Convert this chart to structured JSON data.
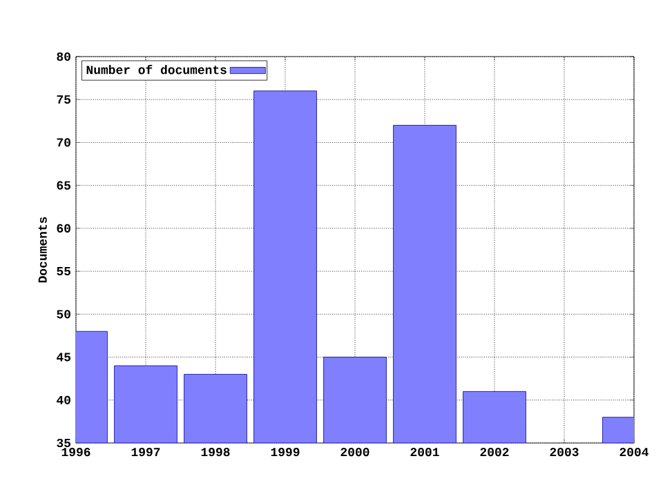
{
  "chart_data": {
    "type": "bar",
    "ylabel": "Documents",
    "x": [
      1996,
      1997,
      1998,
      1999,
      2000,
      2001,
      2002,
      2003,
      2004
    ],
    "series": [
      {
        "name": "Number of documents",
        "color": "#8080ff",
        "values": [
          48,
          44,
          43,
          76,
          45,
          72,
          41,
          null,
          38
        ]
      }
    ],
    "xlim": [
      1996,
      2004
    ],
    "xticks": [
      1996,
      1997,
      1998,
      1999,
      2000,
      2001,
      2002,
      2003,
      2004
    ],
    "ylim": [
      35,
      80
    ],
    "yticks": [
      35,
      40,
      45,
      50,
      55,
      60,
      65,
      70,
      75,
      80
    ],
    "grid": true,
    "legend": "top left"
  }
}
